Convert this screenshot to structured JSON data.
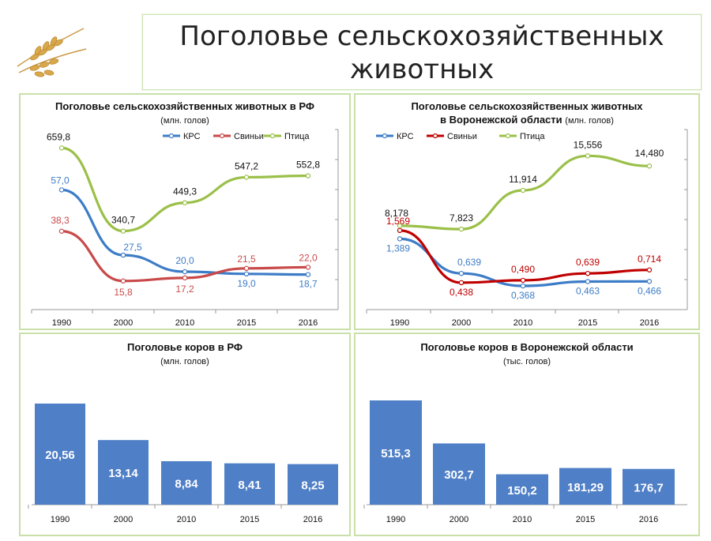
{
  "page": {
    "title_line1": "Поголовье сельскохозяйственных",
    "title_line2": "животных"
  },
  "chart_data": [
    {
      "id": "rf_lines",
      "type": "line",
      "title": "Поголовье сельскохозяйственных  животных в РФ",
      "subtitle": "(млн. голов)",
      "categories": [
        "1990",
        "2000",
        "2010",
        "2015",
        "2016"
      ],
      "series": [
        {
          "name": "КРС",
          "color": "#3d7cc7",
          "values": [
            57.0,
            27.5,
            20.0,
            19.0,
            18.7
          ],
          "labels": [
            "57,0",
            "27,5",
            "20,0",
            "19,0",
            "18,7"
          ]
        },
        {
          "name": "Свиньи",
          "color": "#c94a4a",
          "values": [
            38.3,
            15.8,
            17.2,
            21.5,
            22.0
          ],
          "labels": [
            "38,3",
            "15,8",
            "17,2",
            "21,5",
            "22,0"
          ]
        },
        {
          "name": "Птица",
          "color": "#9bc048",
          "values": [
            659.8,
            340.7,
            449.3,
            547.2,
            552.8
          ],
          "labels": [
            "659,8",
            "340,7",
            "449,3",
            "547,2",
            "552,8"
          ]
        }
      ],
      "legend": "top"
    },
    {
      "id": "vrn_lines",
      "type": "line",
      "title": "Поголовье сельскохозяйственных  животных",
      "title_line2": "в Воронежской области",
      "subtitle": "(млн. голов)",
      "categories": [
        "1990",
        "2000",
        "2010",
        "2015",
        "2016"
      ],
      "series": [
        {
          "name": "КРС",
          "color": "#3d7cc7",
          "values": [
            1.389,
            0.639,
            0.368,
            0.463,
            0.466
          ],
          "labels": [
            "1,389",
            "0,639",
            "0,368",
            "0,463",
            "0,466"
          ]
        },
        {
          "name": "Свиньи",
          "color": "#c00000",
          "values": [
            1.569,
            0.438,
            0.49,
            0.639,
            0.714
          ],
          "labels": [
            "1,569",
            "0,438",
            "0,490",
            "0,639",
            "0,714"
          ]
        },
        {
          "name": "Птица",
          "color": "#9bc048",
          "values": [
            8.178,
            7.823,
            11.914,
            15.556,
            14.48
          ],
          "labels": [
            "8,178",
            "7,823",
            "11,914",
            "15,556",
            "14,480"
          ]
        }
      ],
      "legend": "top"
    },
    {
      "id": "rf_bars",
      "type": "bar",
      "title": "Поголовье коров в РФ",
      "subtitle": "(млн. голов)",
      "categories": [
        "1990",
        "2000",
        "2010",
        "2015",
        "2016"
      ],
      "values": [
        20.56,
        13.14,
        8.84,
        8.41,
        8.25
      ],
      "labels": [
        "20,56",
        "13,14",
        "8,84",
        "8,41",
        "8,25"
      ],
      "color": "#4f7fc6"
    },
    {
      "id": "vrn_bars",
      "type": "bar",
      "title": "Поголовье коров в Воронежской области",
      "subtitle": "(тыс. голов)",
      "categories": [
        "1990",
        "2000",
        "2010",
        "2015",
        "2016"
      ],
      "values": [
        515.3,
        302.7,
        150.2,
        181.29,
        176.7
      ],
      "labels": [
        "515,3",
        "302,7",
        "150,2",
        "181,29",
        "176,7"
      ],
      "color": "#4f7fc6"
    }
  ]
}
